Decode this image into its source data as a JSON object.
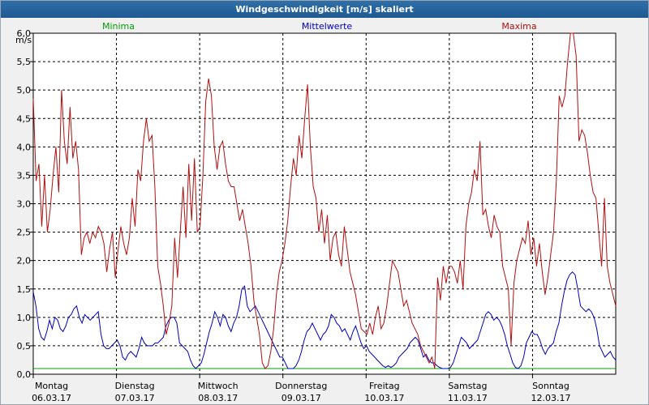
{
  "window": {
    "title": "Windgeschwindigkeit [m/s] skaliert"
  },
  "colors": {
    "minima": "#00a000",
    "mittel": "#0000c0",
    "maxima": "#b01010",
    "grid": "#000000",
    "axis": "#000000"
  },
  "chart_data": {
    "type": "line",
    "title": "Windgeschwindigkeit [m/s] skaliert",
    "ylabel": "m/s",
    "ylim": [
      0,
      6.0
    ],
    "xlim": [
      0,
      7
    ],
    "yticks": [
      "0,0",
      "0,5",
      "1,0",
      "1,5",
      "2,0",
      "2,5",
      "3,0",
      "3,5",
      "4,0",
      "4,5",
      "5,0",
      "5,5",
      "6,0"
    ],
    "days": [
      {
        "name": "Montag",
        "date": "06.03.17"
      },
      {
        "name": "Dienstag",
        "date": "07.03.17"
      },
      {
        "name": "Mittwoch",
        "date": "08.03.17"
      },
      {
        "name": "Donnerstag",
        "date": "09.03.17"
      },
      {
        "name": "Freitag",
        "date": "10.03.17"
      },
      {
        "name": "Samstag",
        "date": "11.03.17"
      },
      {
        "name": "Sonntag",
        "date": "12.03.17"
      }
    ],
    "legend": [
      "Minima",
      "Mittelwerte",
      "Maxima"
    ],
    "series": [
      {
        "name": "Minima",
        "values": [
          0.1,
          0.1
        ]
      },
      {
        "name": "Mittelwerte",
        "values": [
          1.45,
          1.2,
          0.8,
          0.65,
          0.6,
          0.75,
          0.95,
          0.8,
          1.0,
          0.95,
          0.8,
          0.75,
          0.85,
          1.0,
          1.05,
          1.15,
          1.2,
          1.0,
          0.9,
          1.05,
          1.0,
          0.95,
          1.0,
          1.05,
          1.1,
          0.7,
          0.5,
          0.45,
          0.45,
          0.5,
          0.55,
          0.6,
          0.5,
          0.3,
          0.25,
          0.35,
          0.4,
          0.35,
          0.3,
          0.45,
          0.65,
          0.55,
          0.5,
          0.5,
          0.5,
          0.55,
          0.55,
          0.6,
          0.65,
          0.85,
          0.95,
          1.0,
          1.0,
          0.9,
          0.55,
          0.5,
          0.45,
          0.4,
          0.25,
          0.15,
          0.1,
          0.15,
          0.2,
          0.35,
          0.55,
          0.75,
          0.9,
          1.1,
          1.0,
          0.85,
          1.05,
          1.0,
          0.85,
          0.75,
          0.9,
          1.0,
          1.2,
          1.5,
          1.55,
          1.2,
          1.1,
          1.15,
          1.2,
          1.1,
          1.0,
          0.9,
          0.8,
          0.7,
          0.6,
          0.5,
          0.4,
          0.3,
          0.3,
          0.2,
          0.1,
          0.1,
          0.1,
          0.15,
          0.25,
          0.4,
          0.6,
          0.75,
          0.8,
          0.9,
          0.8,
          0.7,
          0.6,
          0.7,
          0.75,
          0.85,
          1.05,
          1.0,
          0.9,
          0.85,
          0.75,
          0.8,
          0.7,
          0.6,
          0.75,
          0.85,
          0.7,
          0.55,
          0.45,
          0.5,
          0.4,
          0.35,
          0.3,
          0.25,
          0.2,
          0.15,
          0.12,
          0.15,
          0.12,
          0.15,
          0.2,
          0.3,
          0.35,
          0.4,
          0.45,
          0.55,
          0.6,
          0.65,
          0.6,
          0.45,
          0.3,
          0.35,
          0.25,
          0.2,
          0.2,
          0.15,
          0.12,
          0.1,
          0.1,
          0.1,
          0.12,
          0.2,
          0.35,
          0.5,
          0.65,
          0.6,
          0.55,
          0.45,
          0.5,
          0.55,
          0.6,
          0.75,
          0.9,
          1.05,
          1.1,
          1.05,
          0.95,
          1.0,
          0.95,
          0.85,
          0.7,
          0.5,
          0.35,
          0.2,
          0.12,
          0.1,
          0.15,
          0.3,
          0.55,
          0.65,
          0.75,
          0.7,
          0.7,
          0.6,
          0.45,
          0.35,
          0.45,
          0.5,
          0.55,
          0.75,
          0.9,
          1.2,
          1.45,
          1.65,
          1.75,
          1.8,
          1.75,
          1.5,
          1.2,
          1.15,
          1.1,
          1.15,
          1.1,
          1.0,
          0.8,
          0.5,
          0.4,
          0.3,
          0.35,
          0.4,
          0.3,
          0.25
        ]
      },
      {
        "name": "Maxima",
        "values": [
          4.85,
          3.4,
          3.7,
          2.6,
          3.5,
          2.5,
          2.9,
          3.5,
          4.0,
          3.2,
          5.0,
          4.1,
          3.7,
          4.7,
          3.8,
          4.1,
          3.6,
          2.1,
          2.4,
          2.5,
          2.3,
          2.5,
          2.4,
          2.6,
          2.5,
          2.3,
          1.8,
          2.2,
          2.5,
          1.7,
          2.2,
          2.6,
          2.3,
          2.1,
          2.4,
          3.1,
          2.6,
          3.6,
          3.4,
          4.1,
          4.5,
          4.1,
          4.2,
          3.3,
          1.9,
          1.6,
          1.2,
          0.7,
          0.9,
          1.2,
          2.4,
          1.7,
          2.5,
          3.3,
          2.4,
          3.7,
          2.7,
          3.8,
          2.5,
          2.6,
          3.5,
          4.8,
          5.2,
          4.9,
          4.0,
          3.6,
          4.0,
          4.1,
          3.7,
          3.4,
          3.3,
          3.3,
          3.0,
          2.7,
          2.9,
          2.6,
          2.3,
          1.9,
          1.3,
          1.0,
          0.7,
          0.2,
          0.1,
          0.15,
          0.4,
          0.8,
          1.4,
          1.8,
          2.0,
          2.3,
          2.7,
          3.3,
          3.8,
          3.5,
          4.2,
          3.8,
          4.5,
          5.1,
          4.0,
          3.3,
          3.1,
          2.5,
          2.9,
          2.3,
          2.8,
          2.0,
          2.4,
          2.5,
          2.1,
          1.9,
          2.6,
          2.2,
          1.8,
          1.6,
          1.4,
          1.1,
          0.8,
          0.75,
          0.7,
          0.9,
          0.7,
          1.0,
          1.2,
          0.8,
          0.9,
          1.2,
          1.6,
          2.0,
          1.9,
          1.8,
          1.5,
          1.2,
          1.3,
          1.1,
          0.9,
          0.8,
          0.7,
          0.5,
          0.4,
          0.3,
          0.2,
          0.3,
          0.1,
          1.7,
          1.3,
          1.9,
          1.6,
          1.9,
          1.9,
          1.8,
          1.6,
          2.0,
          1.5,
          2.6,
          3.0,
          3.2,
          3.6,
          3.4,
          4.1,
          2.8,
          2.9,
          2.6,
          2.4,
          2.8,
          2.6,
          2.5,
          1.9,
          1.7,
          1.5,
          0.5,
          1.6,
          2.0,
          2.2,
          2.4,
          2.3,
          2.7,
          2.1,
          2.4,
          1.9,
          2.3,
          1.8,
          1.4,
          1.7,
          2.1,
          2.5,
          3.4,
          4.9,
          4.7,
          4.9,
          5.5,
          6.0,
          6.0,
          5.6,
          4.1,
          4.3,
          4.2,
          3.9,
          3.5,
          3.2,
          3.1,
          2.5,
          1.9,
          3.1,
          1.9,
          1.6,
          1.4,
          1.2
        ]
      }
    ]
  }
}
